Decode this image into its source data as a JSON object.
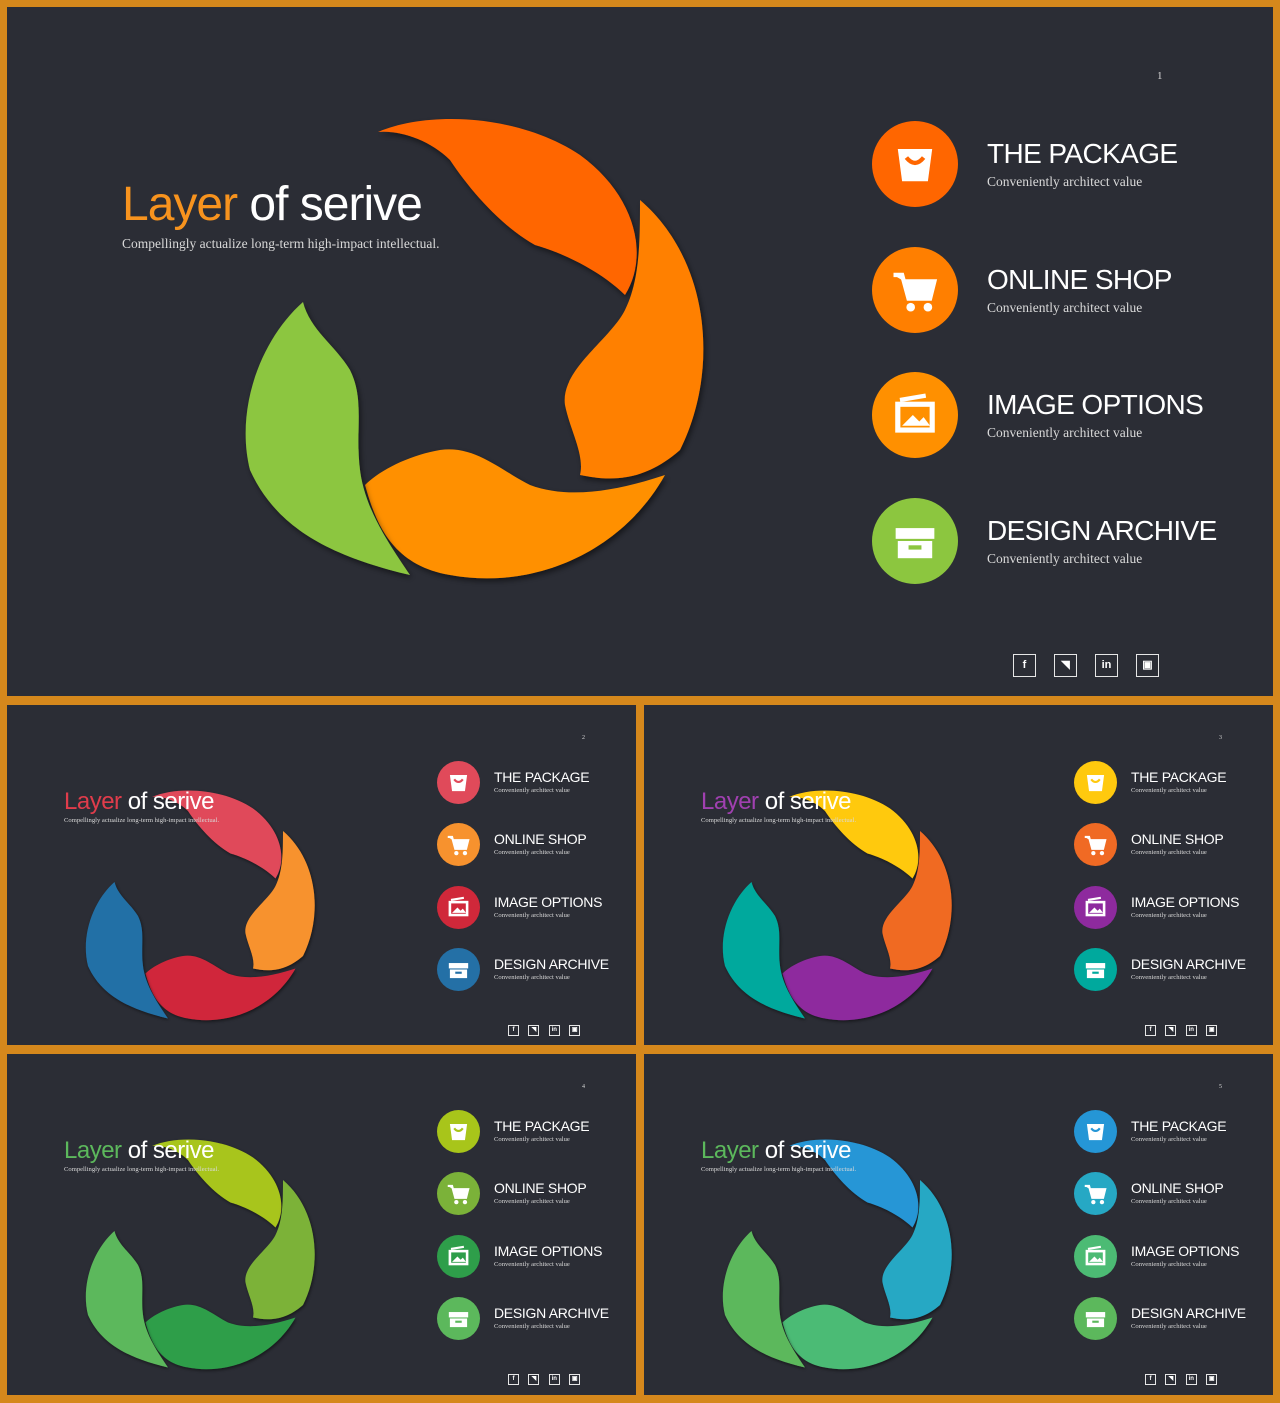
{
  "slides": [
    {
      "page_number": "1",
      "title_accent": "Layer",
      "title_rest": " of serive",
      "subtitle": "Compellingly actualize long-term high-impact intellectual.",
      "accent_color": "#f7931e",
      "petal_colors": [
        "#ff6600",
        "#ff8000",
        "#ff9000",
        "#8cc63f"
      ],
      "items": [
        {
          "label": "THE PACKAGE",
          "sub": "Conveniently architect value",
          "icon": "bag-icon",
          "color": "#ff6600"
        },
        {
          "label": "ONLINE SHOP",
          "sub": "Conveniently architect value",
          "icon": "cart-icon",
          "color": "#ff7f00"
        },
        {
          "label": "IMAGE OPTIONS",
          "sub": "Conveniently architect value",
          "icon": "image-icon",
          "color": "#ff9000"
        },
        {
          "label": "DESIGN ARCHIVE",
          "sub": "Conveniently architect value",
          "icon": "archive-icon",
          "color": "#8cc63f"
        }
      ],
      "social": [
        "f",
        "t",
        "in",
        "ig"
      ]
    },
    {
      "page_number": "2",
      "title_accent": "Layer",
      "title_rest": " of serive",
      "subtitle": "Compellingly actualize long-term high-impact intellectual.",
      "accent_color": "#e03c4b",
      "petal_colors": [
        "#e04a5a",
        "#f7922e",
        "#d0283a",
        "#2470a6"
      ],
      "items": [
        {
          "label": "THE PACKAGE",
          "sub": "Conveniently architect value",
          "icon": "bag-icon",
          "color": "#e04a5a"
        },
        {
          "label": "ONLINE SHOP",
          "sub": "Conveniently architect value",
          "icon": "cart-icon",
          "color": "#f7922e"
        },
        {
          "label": "IMAGE OPTIONS",
          "sub": "Conveniently architect value",
          "icon": "image-icon",
          "color": "#d0283a"
        },
        {
          "label": "DESIGN ARCHIVE",
          "sub": "Conveniently architect value",
          "icon": "archive-icon",
          "color": "#2470a6"
        }
      ],
      "social": [
        "f",
        "t",
        "in",
        "ig"
      ]
    },
    {
      "page_number": "3",
      "title_accent": "Layer",
      "title_rest": " of serive",
      "subtitle": "Compellingly actualize long-term high-impact intellectual.",
      "accent_color": "#a040b0",
      "petal_colors": [
        "#ffc90e",
        "#f06a24",
        "#8e2a9e",
        "#00a99d"
      ],
      "items": [
        {
          "label": "THE PACKAGE",
          "sub": "Conveniently architect value",
          "icon": "bag-icon",
          "color": "#ffc90e"
        },
        {
          "label": "ONLINE SHOP",
          "sub": "Conveniently architect value",
          "icon": "cart-icon",
          "color": "#f06a24"
        },
        {
          "label": "IMAGE OPTIONS",
          "sub": "Conveniently architect value",
          "icon": "image-icon",
          "color": "#8e2a9e"
        },
        {
          "label": "DESIGN ARCHIVE",
          "sub": "Conveniently architect value",
          "icon": "archive-icon",
          "color": "#00a99d"
        }
      ],
      "social": [
        "f",
        "t",
        "in",
        "ig"
      ]
    },
    {
      "page_number": "4",
      "title_accent": "Layer",
      "title_rest": " of serive",
      "subtitle": "Compellingly actualize long-term high-impact intellectual.",
      "accent_color": "#5cb85c",
      "petal_colors": [
        "#a8c51a",
        "#7bb239",
        "#2e9e4a",
        "#5cb85c"
      ],
      "items": [
        {
          "label": "THE PACKAGE",
          "sub": "Conveniently architect value",
          "icon": "bag-icon",
          "color": "#a8c51a"
        },
        {
          "label": "ONLINE SHOP",
          "sub": "Conveniently architect value",
          "icon": "cart-icon",
          "color": "#7bb239"
        },
        {
          "label": "IMAGE OPTIONS",
          "sub": "Conveniently architect value",
          "icon": "image-icon",
          "color": "#2e9e4a"
        },
        {
          "label": "DESIGN ARCHIVE",
          "sub": "Conveniently architect value",
          "icon": "archive-icon",
          "color": "#5cb85c"
        }
      ],
      "social": [
        "f",
        "t",
        "in",
        "ig"
      ]
    },
    {
      "page_number": "5",
      "title_accent": "Layer",
      "title_rest": " of serive",
      "subtitle": "Compellingly actualize long-term high-impact intellectual.",
      "accent_color": "#5cb85c",
      "petal_colors": [
        "#2596d6",
        "#26a8c4",
        "#4cbb74",
        "#5cb85c"
      ],
      "items": [
        {
          "label": "THE PACKAGE",
          "sub": "Conveniently architect value",
          "icon": "bag-icon",
          "color": "#2596d6"
        },
        {
          "label": "ONLINE SHOP",
          "sub": "Conveniently architect value",
          "icon": "cart-icon",
          "color": "#26a8c4"
        },
        {
          "label": "IMAGE OPTIONS",
          "sub": "Conveniently architect value",
          "icon": "image-icon",
          "color": "#4cbb74"
        },
        {
          "label": "DESIGN ARCHIVE",
          "sub": "Conveniently architect value",
          "icon": "archive-icon",
          "color": "#5cb85c"
        }
      ],
      "social": [
        "f",
        "t",
        "in",
        "ig"
      ]
    }
  ]
}
